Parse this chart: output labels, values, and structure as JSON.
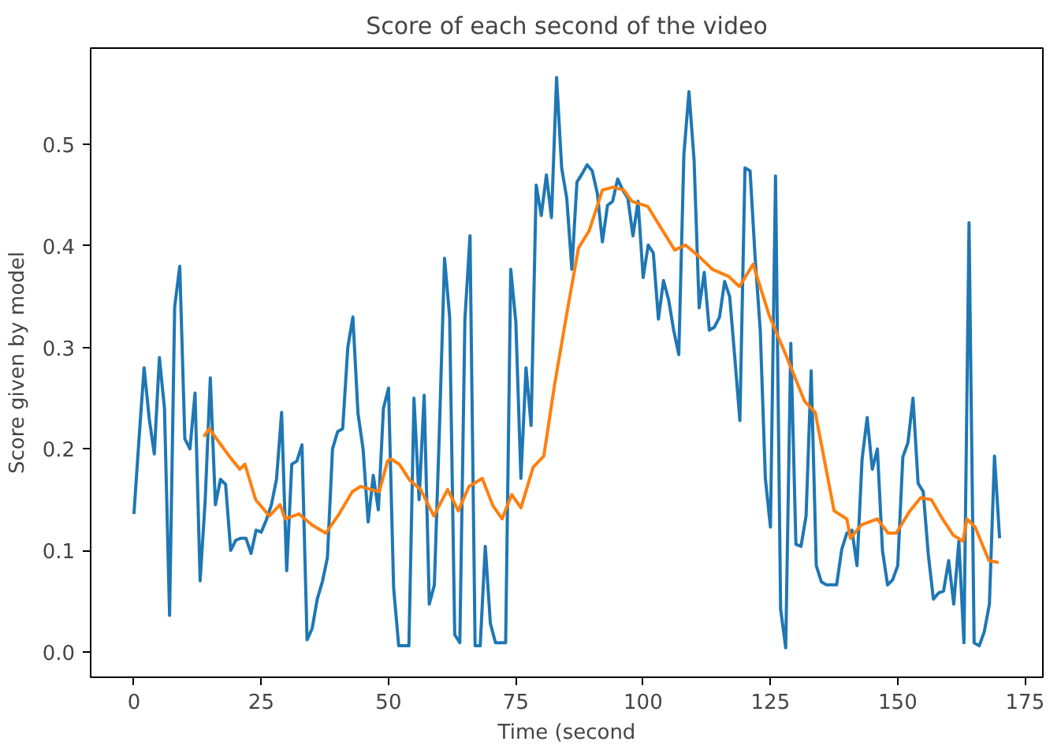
{
  "chart_data": {
    "type": "line",
    "title": "Score of each second of the video",
    "xlabel": "Time (second",
    "ylabel": "Score given by model",
    "xlim": [
      -8.5,
      178.5
    ],
    "ylim": [
      -0.025,
      0.595
    ],
    "xticks": [
      0,
      25,
      50,
      75,
      100,
      125,
      150,
      175
    ],
    "yticks": [
      {
        "value": 0,
        "label": "0.0"
      },
      {
        "value": 0.1,
        "label": "0.1"
      },
      {
        "value": 0.2,
        "label": "0.2"
      },
      {
        "value": 0.3,
        "label": "0.3"
      },
      {
        "value": 0.4,
        "label": "0.4"
      },
      {
        "value": 0.5,
        "label": "0.5"
      }
    ],
    "grid": false,
    "line_style": "solid",
    "series": [
      {
        "color": "#1f77b4",
        "x": [
          0,
          1,
          2,
          3,
          4,
          5,
          6,
          7,
          8,
          9,
          10,
          11,
          12,
          13,
          14,
          15,
          16,
          17,
          18,
          19,
          20,
          21,
          22,
          23,
          24,
          25,
          26,
          27,
          28,
          29,
          30,
          31,
          32,
          33,
          34,
          35,
          36,
          37,
          38,
          39,
          40,
          41,
          42,
          43,
          44,
          45,
          46,
          47,
          48,
          49,
          50,
          51,
          52,
          53,
          54,
          55,
          56,
          57,
          58,
          59,
          60,
          61,
          62,
          63,
          64,
          65,
          66,
          67,
          68,
          69,
          70,
          71,
          72,
          73,
          74,
          75,
          76,
          77,
          78,
          79,
          80,
          81,
          82,
          83,
          84,
          85,
          86,
          87,
          88,
          89,
          90,
          91,
          92,
          93,
          94,
          95,
          96,
          97,
          98,
          99,
          100,
          101,
          102,
          103,
          104,
          105,
          106,
          107,
          108,
          109,
          110,
          111,
          112,
          113,
          114,
          115,
          116,
          117,
          118,
          119,
          120,
          121,
          122,
          123,
          124,
          125,
          126,
          127,
          128,
          129,
          130,
          131,
          132,
          133,
          134,
          135,
          136,
          137,
          138,
          139,
          140,
          141,
          142,
          143,
          144,
          145,
          146,
          147,
          148,
          149,
          150,
          151,
          152,
          153,
          154,
          155,
          156,
          157,
          158,
          159,
          160,
          161,
          162,
          163,
          164,
          165,
          166,
          167,
          168,
          169,
          170
        ],
        "values": [
          0.136,
          0.21,
          0.28,
          0.23,
          0.195,
          0.29,
          0.24,
          0.036,
          0.34,
          0.38,
          0.21,
          0.2,
          0.255,
          0.07,
          0.15,
          0.27,
          0.145,
          0.17,
          0.165,
          0.1,
          0.11,
          0.112,
          0.112,
          0.097,
          0.12,
          0.118,
          0.13,
          0.145,
          0.17,
          0.236,
          0.08,
          0.185,
          0.188,
          0.204,
          0.012,
          0.023,
          0.052,
          0.069,
          0.093,
          0.2,
          0.217,
          0.22,
          0.3,
          0.33,
          0.235,
          0.2,
          0.128,
          0.174,
          0.14,
          0.24,
          0.26,
          0.063,
          0.006,
          0.006,
          0.006,
          0.25,
          0.15,
          0.253,
          0.047,
          0.066,
          0.22,
          0.388,
          0.33,
          0.017,
          0.009,
          0.328,
          0.41,
          0.006,
          0.006,
          0.104,
          0.028,
          0.009,
          0.009,
          0.009,
          0.377,
          0.325,
          0.171,
          0.28,
          0.223,
          0.46,
          0.43,
          0.47,
          0.428,
          0.566,
          0.477,
          0.447,
          0.377,
          0.463,
          0.471,
          0.48,
          0.474,
          0.452,
          0.404,
          0.44,
          0.444,
          0.466,
          0.455,
          0.447,
          0.41,
          0.444,
          0.369,
          0.401,
          0.393,
          0.328,
          0.366,
          0.347,
          0.317,
          0.293,
          0.49,
          0.552,
          0.485,
          0.339,
          0.374,
          0.317,
          0.32,
          0.33,
          0.365,
          0.35,
          0.29,
          0.228,
          0.477,
          0.474,
          0.388,
          0.317,
          0.171,
          0.123,
          0.469,
          0.042,
          0.004,
          0.304,
          0.106,
          0.104,
          0.134,
          0.277,
          0.085,
          0.069,
          0.066,
          0.066,
          0.066,
          0.101,
          0.117,
          0.12,
          0.085,
          0.19,
          0.231,
          0.18,
          0.2,
          0.1,
          0.066,
          0.071,
          0.085,
          0.192,
          0.206,
          0.25,
          0.166,
          0.158,
          0.096,
          0.052,
          0.058,
          0.06,
          0.09,
          0.047,
          0.109,
          0.009,
          0.423,
          0.009,
          0.006,
          0.02,
          0.047,
          0.193,
          0.112
        ]
      },
      {
        "color": "#ff7f0e",
        "x": [
          13.7,
          14.8,
          17.1,
          18.7,
          20.8,
          21.8,
          23.9,
          26.6,
          28.7,
          29.7,
          32.4,
          35,
          37.7,
          40.3,
          42.9,
          44.5,
          46.6,
          48.2,
          49.8,
          50.5,
          52.1,
          54.2,
          56.3,
          58.9,
          61.6,
          63.7,
          65.8,
          68.4,
          70.5,
          72.3,
          74.2,
          76,
          78.4,
          80.5,
          82.6,
          85.2,
          87.3,
          89.4,
          92,
          94.1,
          96.2,
          97.8,
          100.9,
          103.6,
          106.2,
          108.3,
          110.9,
          113.6,
          116.8,
          118.9,
          121.6,
          124.8,
          128,
          131.7,
          133.8,
          137.5,
          140,
          140.7,
          142.8,
          146,
          148.1,
          149.7,
          152.4,
          154.5,
          156.6,
          158.8,
          160.9,
          162.8,
          163.6,
          165.2,
          167.9,
          169.8
        ],
        "values": [
          0.212,
          0.22,
          0.204,
          0.193,
          0.18,
          0.185,
          0.15,
          0.134,
          0.145,
          0.131,
          0.136,
          0.125,
          0.117,
          0.136,
          0.158,
          0.163,
          0.16,
          0.158,
          0.188,
          0.19,
          0.185,
          0.169,
          0.16,
          0.134,
          0.16,
          0.139,
          0.163,
          0.171,
          0.144,
          0.131,
          0.155,
          0.142,
          0.182,
          0.193,
          0.263,
          0.339,
          0.398,
          0.415,
          0.455,
          0.458,
          0.455,
          0.444,
          0.439,
          0.417,
          0.396,
          0.401,
          0.39,
          0.377,
          0.37,
          0.36,
          0.382,
          0.331,
          0.293,
          0.247,
          0.236,
          0.139,
          0.131,
          0.112,
          0.125,
          0.131,
          0.117,
          0.117,
          0.139,
          0.152,
          0.15,
          0.131,
          0.115,
          0.109,
          0.131,
          0.123,
          0.09,
          0.088
        ]
      }
    ]
  }
}
